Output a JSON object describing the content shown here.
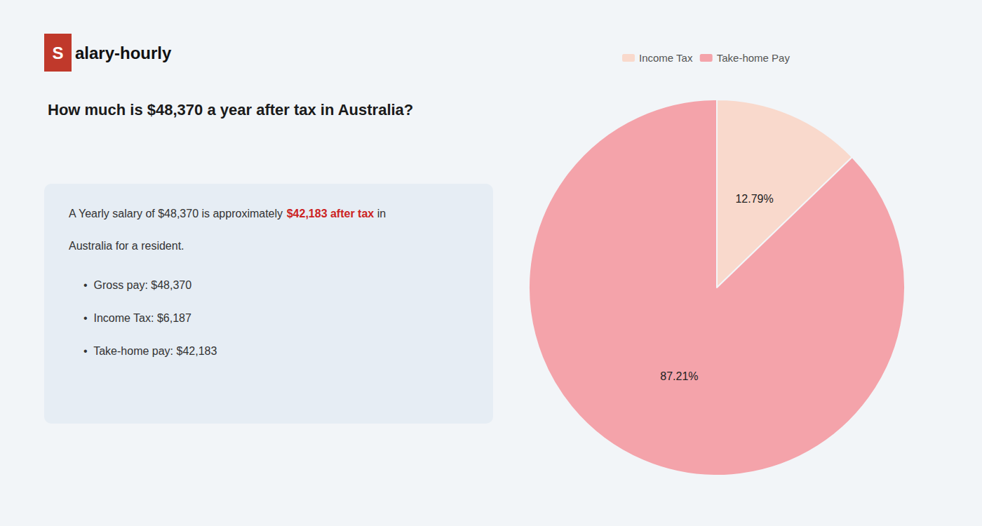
{
  "chart_data": {
    "type": "pie",
    "title": "How much is $48,370 a year after tax in Australia?",
    "annotations": [
      "S",
      "alary-hourly",
      "A Yearly salary of $48,370 is approximately ",
      "$42,183 after tax",
      " in",
      "Australia for a resident.",
      "•  Gross pay: $48,370",
      "•  Income Tax: $6,187",
      "•  Take-home pay: $42,183"
    ],
    "categories": [
      "Income Tax",
      "Take-home Pay"
    ],
    "values": [
      12.79,
      87.21
    ],
    "value_labels": [
      "12.79%",
      "87.21%"
    ],
    "colors": [
      "#f9d9cc",
      "#f4a3aa"
    ],
    "legend": "top",
    "data_labels": true
  }
}
